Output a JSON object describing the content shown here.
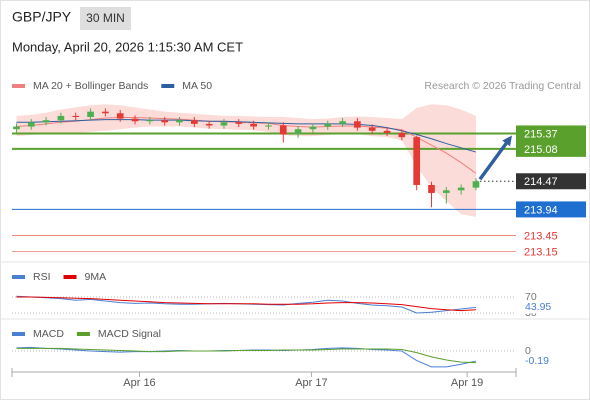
{
  "header": {
    "symbol": "GBP/JPY",
    "interval": "30 MIN",
    "timestamp": "Monday, April 20, 2026 1:15:30 AM CET"
  },
  "chart_data": [
    {
      "type": "candlestick",
      "credit": "Research © 2026 Trading Central",
      "xlim": [
        -0.3,
        33.7
      ],
      "xticks": [
        {
          "value": 8.3,
          "label": "Apr 16"
        },
        {
          "value": 19.9,
          "label": "Apr 17"
        },
        {
          "value": 30.4,
          "label": "Apr 19"
        }
      ],
      "ylim": [
        212.95,
        216.0
      ],
      "up_color": "#4caf50",
      "down_color": "#e53935",
      "band_color": "#fbd3d0",
      "candles": {
        "open": [
          215.45,
          215.5,
          215.58,
          215.62,
          215.7,
          215.68,
          215.78,
          215.75,
          215.65,
          215.6,
          215.62,
          215.58,
          215.62,
          215.55,
          215.52,
          215.58,
          215.55,
          215.5,
          215.52,
          215.35,
          215.45,
          215.5,
          215.55,
          215.6,
          215.48,
          215.42,
          215.38,
          215.3,
          214.4,
          214.25,
          214.3,
          214.35
        ],
        "high": [
          215.56,
          215.64,
          215.68,
          215.76,
          215.76,
          215.84,
          215.84,
          215.81,
          215.71,
          215.68,
          215.68,
          215.68,
          215.68,
          215.61,
          215.64,
          215.64,
          215.61,
          215.58,
          215.58,
          215.51,
          215.56,
          215.61,
          215.66,
          215.66,
          215.54,
          215.48,
          215.44,
          215.33,
          214.46,
          214.36,
          214.41,
          214.53
        ],
        "low": [
          215.39,
          215.44,
          215.52,
          215.56,
          215.62,
          215.62,
          215.69,
          215.59,
          215.54,
          215.54,
          215.52,
          215.52,
          215.49,
          215.46,
          215.46,
          215.49,
          215.44,
          215.44,
          215.2,
          215.29,
          215.39,
          215.44,
          215.49,
          215.42,
          215.36,
          215.32,
          215.24,
          214.3,
          213.98,
          214.05,
          214.22,
          214.3
        ],
        "close": [
          215.5,
          215.58,
          215.62,
          215.7,
          215.68,
          215.78,
          215.75,
          215.65,
          215.6,
          215.62,
          215.58,
          215.62,
          215.55,
          215.52,
          215.58,
          215.55,
          215.5,
          215.52,
          215.35,
          215.45,
          215.5,
          215.55,
          215.6,
          215.48,
          215.42,
          215.38,
          215.3,
          214.4,
          214.25,
          214.3,
          214.35,
          214.47
        ]
      },
      "band": {
        "upper": [
          215.7,
          215.72,
          215.76,
          215.82,
          215.86,
          215.9,
          215.92,
          215.9,
          215.86,
          215.82,
          215.78,
          215.76,
          215.74,
          215.72,
          215.7,
          215.7,
          215.69,
          215.68,
          215.68,
          215.66,
          215.64,
          215.65,
          215.68,
          215.69,
          215.68,
          215.66,
          215.64,
          215.85,
          215.92,
          215.9,
          215.82,
          215.7
        ],
        "lower": [
          215.32,
          215.34,
          215.36,
          215.38,
          215.38,
          215.4,
          215.42,
          215.45,
          215.48,
          215.5,
          215.5,
          215.5,
          215.48,
          215.46,
          215.45,
          215.44,
          215.43,
          215.4,
          215.34,
          215.32,
          215.32,
          215.34,
          215.36,
          215.36,
          215.32,
          215.3,
          215.24,
          214.75,
          214.35,
          214.1,
          213.85,
          213.8
        ]
      },
      "series": [
        {
          "name": "MA 20 + Bollinger Bands",
          "color": "#f08080",
          "values": [
            215.5,
            215.52,
            215.55,
            215.58,
            215.6,
            215.63,
            215.66,
            215.67,
            215.67,
            215.66,
            215.65,
            215.64,
            215.62,
            215.6,
            215.59,
            215.58,
            215.57,
            215.56,
            215.52,
            215.5,
            215.49,
            215.5,
            215.51,
            215.51,
            215.49,
            215.47,
            215.44,
            215.3,
            215.15,
            215.0,
            214.82,
            214.62
          ]
        },
        {
          "name": "MA 50",
          "color": "#2f5f9f",
          "values": [
            215.58,
            215.58,
            215.59,
            215.6,
            215.61,
            215.62,
            215.63,
            215.63,
            215.63,
            215.62,
            215.62,
            215.62,
            215.61,
            215.6,
            215.6,
            215.59,
            215.58,
            215.57,
            215.56,
            215.55,
            215.55,
            215.55,
            215.55,
            215.54,
            215.52,
            215.48,
            215.42,
            215.35,
            215.27,
            215.18,
            215.1,
            215.02
          ]
        }
      ],
      "levels": [
        {
          "value": 215.37,
          "color": "#5aa02c",
          "width": 2,
          "box": true
        },
        {
          "value": 215.08,
          "color": "#5aa02c",
          "width": 2,
          "box": true
        },
        {
          "value": 214.47,
          "color": "#333333",
          "width": 1,
          "box": true,
          "dotted": true
        },
        {
          "value": 213.94,
          "color": "#1e6fd0",
          "width": 1,
          "box": true
        },
        {
          "value": 213.45,
          "color": "#e53935",
          "width": 0.6,
          "box": false
        },
        {
          "value": 213.15,
          "color": "#e53935",
          "width": 0.6,
          "box": false
        }
      ],
      "target": 215.37
    },
    {
      "type": "line",
      "ylim": [
        0,
        100
      ],
      "yticks": [
        30,
        70
      ],
      "series": [
        {
          "name": "RSI",
          "color": "#4a7fd4",
          "values": [
            72,
            70,
            68,
            66,
            62,
            64,
            60,
            56,
            54,
            55,
            53,
            52,
            52,
            53,
            54,
            53,
            52,
            51,
            50,
            54,
            57,
            62,
            60,
            54,
            50,
            48,
            45,
            30,
            32,
            36,
            40,
            43.95
          ]
        },
        {
          "name": "9MA",
          "color": "#e00000",
          "values": [
            70,
            70,
            69,
            68,
            67,
            66,
            64,
            62,
            60,
            58,
            56,
            55,
            54,
            53,
            53,
            53,
            53,
            52,
            52,
            52,
            53,
            55,
            56,
            56,
            55,
            53,
            51,
            46,
            41,
            38,
            36,
            38
          ]
        }
      ],
      "last_value": 43.95,
      "last_color": "#4a7fd4"
    },
    {
      "type": "line",
      "ylim": [
        -0.36,
        0.4
      ],
      "yticks": [
        0
      ],
      "series": [
        {
          "name": "MACD",
          "color": "#4a7fd4",
          "values": [
            0.06,
            0.07,
            0.05,
            0.04,
            0.02,
            0.0,
            -0.01,
            -0.02,
            -0.01,
            -0.01,
            0.0,
            0.01,
            0.0,
            0.0,
            0.01,
            0.01,
            0.02,
            0.02,
            0.01,
            0.02,
            0.03,
            0.05,
            0.06,
            0.05,
            0.03,
            0.02,
            0.0,
            -0.18,
            -0.3,
            -0.3,
            -0.25,
            -0.19
          ]
        },
        {
          "name": "MACD Signal",
          "color": "#5aa02c",
          "values": [
            0.05,
            0.05,
            0.05,
            0.05,
            0.04,
            0.03,
            0.02,
            0.01,
            0.0,
            -0.01,
            -0.01,
            0.0,
            0.0,
            0.0,
            0.0,
            0.01,
            0.01,
            0.01,
            0.02,
            0.02,
            0.02,
            0.03,
            0.04,
            0.04,
            0.04,
            0.04,
            0.03,
            -0.03,
            -0.11,
            -0.17,
            -0.21,
            -0.22
          ]
        }
      ],
      "last_value": -0.19,
      "last_color": "#4a7fd4"
    }
  ]
}
